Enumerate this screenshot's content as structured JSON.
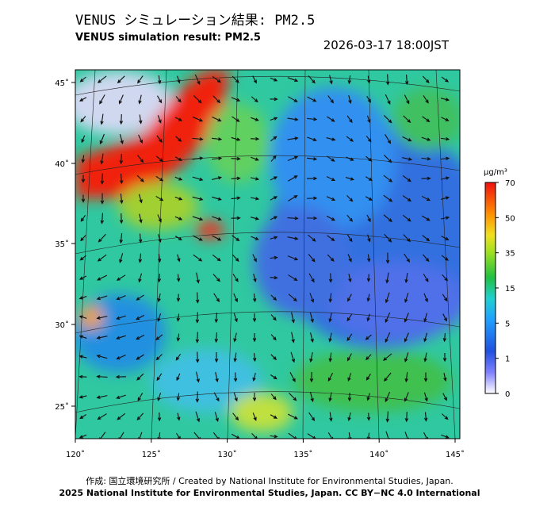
{
  "header": {
    "title": "VENUS シミュレーション結果: PM2.5",
    "subtitle": "VENUS simulation result: PM2.5",
    "timestamp": "2026-03-17 18:00JST"
  },
  "map": {
    "lon_labels": [
      "120˚",
      "125˚",
      "130˚",
      "135˚",
      "140˚",
      "145˚"
    ],
    "lat_labels": [
      "45˚",
      "40˚",
      "35˚",
      "30˚",
      "25˚"
    ]
  },
  "colorbar": {
    "unit": "μg/m³",
    "labels": [
      70,
      50,
      35,
      15,
      5,
      1,
      0
    ]
  },
  "footer": {
    "line1": "作成: 国立環境研究所 / Created by National Institute for Environmental Studies, Japan.",
    "line2": "2025 National Institute for Environmental Studies, Japan. CC BY−NC 4.0 International"
  }
}
